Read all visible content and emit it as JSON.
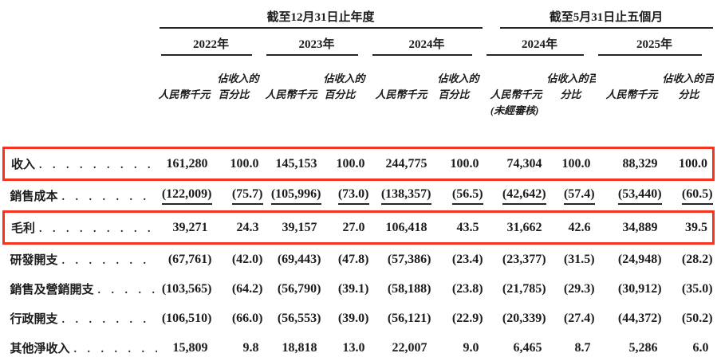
{
  "colors": {
    "highlight_box": "#f5331f",
    "ink": "#1c1c1e"
  },
  "table": {
    "period_groups": [
      {
        "title": "截至12月31日止年度"
      },
      {
        "title": "截至5月31日止五個月"
      }
    ],
    "year_headers": [
      "2022年",
      "2023年",
      "2024年",
      "2024年",
      "2025年"
    ],
    "amount_unit_label": "人民幣千元",
    "pct_label_annual": [
      "佔收入的",
      "百分比"
    ],
    "pct_label_five_months": [
      "佔收入的百",
      "分比"
    ],
    "unaudited_note": "(未經審核)",
    "leader_dots": ". . . . . . . . . . . . . . . . . . . . . . . . . . . . . . . . . . . .",
    "rows": [
      {
        "label": "收入",
        "highlight": true,
        "underline": false,
        "values": [
          "161,280",
          "100.0",
          "145,153",
          "100.0",
          "244,775",
          "100.0",
          "74,304",
          "100.0",
          "88,329",
          "100.0"
        ]
      },
      {
        "label": "銷售成本",
        "highlight": false,
        "underline": true,
        "values": [
          "(122,009)",
          "(75.7)",
          "(105,996)",
          "(73.0)",
          "(138,357)",
          "(56.5)",
          "(42,642)",
          "(57.4)",
          "(53,440)",
          "(60.5)"
        ]
      },
      {
        "label": "毛利",
        "highlight": true,
        "underline": false,
        "values": [
          "39,271",
          "24.3",
          "39,157",
          "27.0",
          "106,418",
          "43.5",
          "31,662",
          "42.6",
          "34,889",
          "39.5"
        ]
      },
      {
        "label": "研發開支",
        "highlight": false,
        "underline": false,
        "values": [
          "(67,761)",
          "(42.0)",
          "(69,443)",
          "(47.8)",
          "(57,386)",
          "(23.4)",
          "(23,377)",
          "(31.5)",
          "(24,948)",
          "(28.2)"
        ]
      },
      {
        "label": "銷售及營銷開支",
        "highlight": false,
        "underline": false,
        "values": [
          "(103,565)",
          "(64.2)",
          "(56,790)",
          "(39.1)",
          "(58,188)",
          "(23.8)",
          "(21,785)",
          "(29.3)",
          "(30,912)",
          "(35.0)"
        ]
      },
      {
        "label": "行政開支",
        "highlight": false,
        "underline": false,
        "values": [
          "(106,510)",
          "(66.0)",
          "(56,553)",
          "(39.0)",
          "(56,121)",
          "(22.9)",
          "(20,339)",
          "(27.4)",
          "(44,372)",
          "(50.2)"
        ]
      },
      {
        "label": "其他淨收入",
        "highlight": false,
        "underline": false,
        "values": [
          "15,809",
          "9.8",
          "18,818",
          "13.0",
          "22,007",
          "9.0",
          "6,465",
          "8.7",
          "5,286",
          "6.0"
        ]
      }
    ]
  }
}
